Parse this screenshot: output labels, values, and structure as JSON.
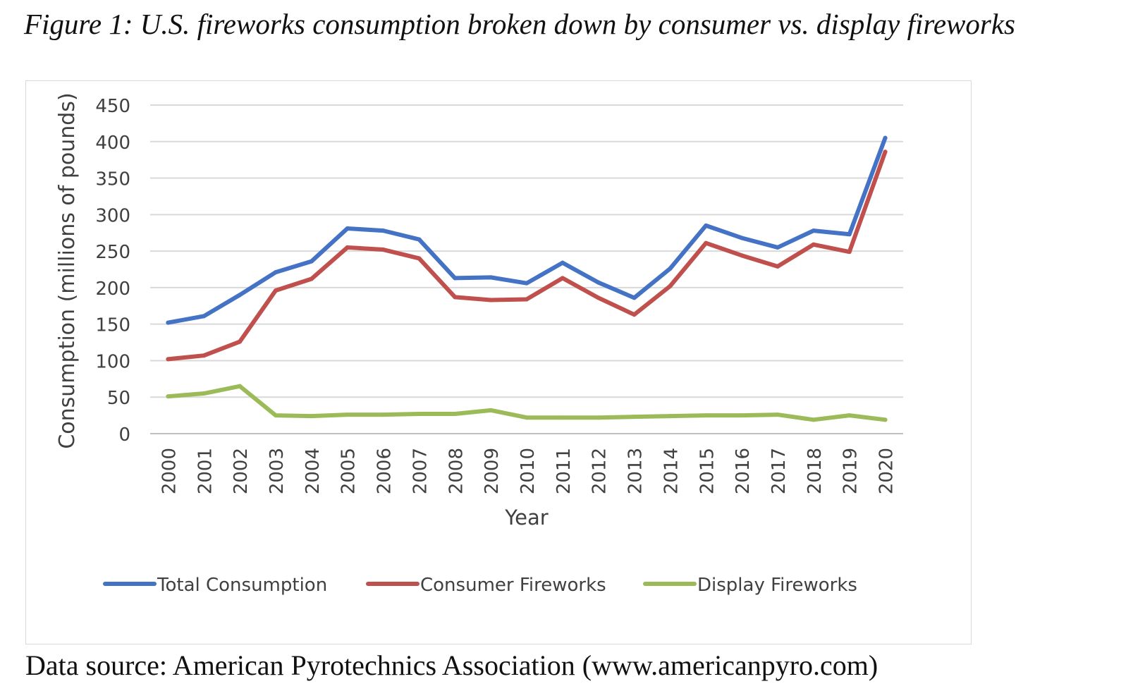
{
  "figure": {
    "title": "Figure 1: U.S. fireworks consumption broken down by consumer vs. display fireworks",
    "source": "Data source: American Pyrotechnics Association (www.americanpyro.com)"
  },
  "chart_data": {
    "type": "line",
    "xlabel": "Year",
    "ylabel": "Consumption (millions of pounds)",
    "ylim": [
      0,
      450
    ],
    "yticks": [
      0,
      50,
      100,
      150,
      200,
      250,
      300,
      350,
      400,
      450
    ],
    "grid": true,
    "legend_position": "bottom",
    "categories": [
      "2000",
      "2001",
      "2002",
      "2003",
      "2004",
      "2005",
      "2006",
      "2007",
      "2008",
      "2009",
      "2010",
      "2011",
      "2012",
      "2013",
      "2014",
      "2015",
      "2016",
      "2017",
      "2018",
      "2019",
      "2020"
    ],
    "series": [
      {
        "name": "Total Consumption",
        "color": "#4472C4",
        "values": [
          152,
          161,
          190,
          221,
          236,
          281,
          278,
          266,
          213,
          214,
          206,
          234,
          207,
          186,
          226,
          285,
          268,
          255,
          278,
          273,
          405
        ]
      },
      {
        "name": "Consumer Fireworks",
        "color": "#C0504D",
        "values": [
          102,
          107,
          126,
          196,
          212,
          255,
          252,
          240,
          187,
          183,
          184,
          213,
          186,
          163,
          202,
          261,
          244,
          229,
          259,
          249,
          386
        ]
      },
      {
        "name": "Display Fireworks",
        "color": "#9BBB59",
        "values": [
          51,
          55,
          65,
          25,
          24,
          26,
          26,
          27,
          27,
          32,
          22,
          22,
          22,
          23,
          24,
          25,
          25,
          26,
          19,
          25,
          19
        ]
      }
    ]
  }
}
